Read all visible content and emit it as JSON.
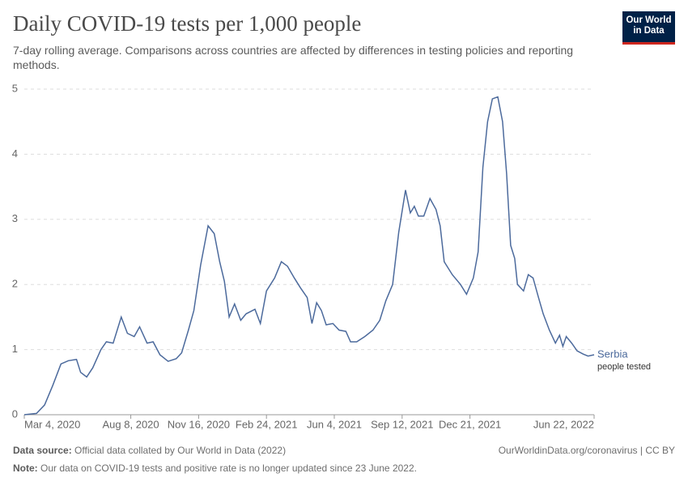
{
  "logo": {
    "line1": "Our World",
    "line2": "in Data"
  },
  "chart_data": {
    "type": "line",
    "title": "Daily COVID-19 tests per 1,000 people",
    "subtitle": "7-day rolling average. Comparisons across countries are affected by differences in testing policies and reporting methods.",
    "x": [
      "2020-03-04",
      "2020-03-22",
      "2020-04-03",
      "2020-04-15",
      "2020-04-27",
      "2020-05-08",
      "2020-05-20",
      "2020-05-26",
      "2020-06-04",
      "2020-06-13",
      "2020-06-25",
      "2020-07-03",
      "2020-07-13",
      "2020-07-25",
      "2020-08-03",
      "2020-08-13",
      "2020-08-21",
      "2020-09-01",
      "2020-09-10",
      "2020-09-20",
      "2020-10-02",
      "2020-10-14",
      "2020-10-22",
      "2020-11-01",
      "2020-11-09",
      "2020-11-19",
      "2020-11-30",
      "2020-12-09",
      "2020-12-17",
      "2020-12-24",
      "2020-12-31",
      "2021-01-08",
      "2021-01-17",
      "2021-01-25",
      "2021-02-07",
      "2021-02-15",
      "2021-02-24",
      "2021-03-08",
      "2021-03-18",
      "2021-03-27",
      "2021-04-06",
      "2021-04-15",
      "2021-04-25",
      "2021-05-02",
      "2021-05-09",
      "2021-05-16",
      "2021-05-23",
      "2021-06-02",
      "2021-06-11",
      "2021-06-21",
      "2021-06-28",
      "2021-07-07",
      "2021-07-19",
      "2021-07-31",
      "2021-08-10",
      "2021-08-19",
      "2021-08-29",
      "2021-09-07",
      "2021-09-17",
      "2021-09-24",
      "2021-09-30",
      "2021-10-06",
      "2021-10-14",
      "2021-10-23",
      "2021-11-01",
      "2021-11-07",
      "2021-11-13",
      "2021-11-25",
      "2021-12-07",
      "2021-12-16",
      "2021-12-26",
      "2022-01-02",
      "2022-01-09",
      "2022-01-16",
      "2022-01-23",
      "2022-01-31",
      "2022-02-07",
      "2022-02-13",
      "2022-02-19",
      "2022-02-25",
      "2022-03-01",
      "2022-03-10",
      "2022-03-17",
      "2022-03-24",
      "2022-04-01",
      "2022-04-08",
      "2022-04-17",
      "2022-04-26",
      "2022-05-02",
      "2022-05-07",
      "2022-05-12",
      "2022-05-20",
      "2022-05-28",
      "2022-06-06",
      "2022-06-13",
      "2022-06-22"
    ],
    "series": [
      {
        "name": "Serbia",
        "sublabel": "people tested",
        "color": "#4c6a9c",
        "values": [
          0,
          0.02,
          0.15,
          0.45,
          0.78,
          0.83,
          0.85,
          0.65,
          0.58,
          0.72,
          1.0,
          1.12,
          1.1,
          1.5,
          1.25,
          1.2,
          1.35,
          1.1,
          1.12,
          0.92,
          0.82,
          0.86,
          0.95,
          1.3,
          1.6,
          2.3,
          2.9,
          2.78,
          2.35,
          2.05,
          1.5,
          1.7,
          1.45,
          1.55,
          1.62,
          1.4,
          1.9,
          2.1,
          2.35,
          2.28,
          2.1,
          1.95,
          1.8,
          1.4,
          1.72,
          1.6,
          1.38,
          1.4,
          1.3,
          1.28,
          1.12,
          1.12,
          1.2,
          1.3,
          1.45,
          1.75,
          2.0,
          2.8,
          3.45,
          3.1,
          3.2,
          3.05,
          3.05,
          3.32,
          3.15,
          2.9,
          2.35,
          2.15,
          2.0,
          1.85,
          2.1,
          2.5,
          3.8,
          4.5,
          4.85,
          4.88,
          4.5,
          3.7,
          2.6,
          2.4,
          2.0,
          1.9,
          2.15,
          2.1,
          1.8,
          1.55,
          1.3,
          1.1,
          1.22,
          1.05,
          1.2,
          1.1,
          0.98,
          0.93,
          0.9,
          0.92
        ]
      }
    ],
    "xlim": [
      "2020-03-04",
      "2022-06-22"
    ],
    "xticks": [
      {
        "value": "2020-03-04",
        "label": "Mar 4, 2020"
      },
      {
        "value": "2020-08-08",
        "label": "Aug 8, 2020"
      },
      {
        "value": "2020-11-16",
        "label": "Nov 16, 2020"
      },
      {
        "value": "2021-02-24",
        "label": "Feb 24, 2021"
      },
      {
        "value": "2021-06-04",
        "label": "Jun 4, 2021"
      },
      {
        "value": "2021-09-12",
        "label": "Sep 12, 2021"
      },
      {
        "value": "2021-12-21",
        "label": "Dec 21, 2021"
      },
      {
        "value": "2022-06-22",
        "label": "Jun 22, 2022"
      }
    ],
    "ylim": [
      0,
      5
    ],
    "yticks": [
      0,
      1,
      2,
      3,
      4,
      5
    ],
    "grid": true,
    "source_label": "Data source:",
    "source": "Official data collated by Our World in Data (2022)",
    "credit": "OurWorldinData.org/coronavirus | CC BY",
    "note_label": "Note:",
    "note": "Our data on COVID-19 tests and positive rate is no longer updated since 23 June 2022."
  }
}
